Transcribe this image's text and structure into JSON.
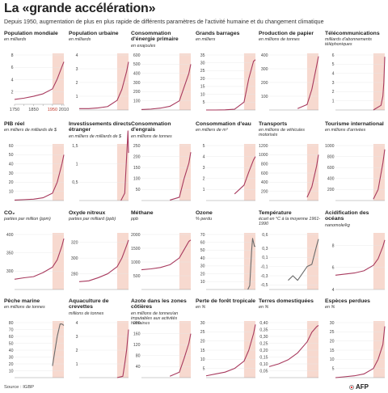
{
  "header": {
    "title": "La «grande accélération»",
    "subtitle": "Depuis 1950, augmentation de plus en plus rapide de différents paramètres de l'activité humaine et du changement climatique"
  },
  "footer": {
    "source": "Source : IGBP",
    "logo": "AFP"
  },
  "colors": {
    "line": "#a83a5e",
    "highlight": "#f7d9cf",
    "line_dark": "#6b6b6b",
    "axis": "#999999"
  },
  "chart_data": [
    {
      "type": "line",
      "title": "Population mondiale",
      "ylabel": "en milliards",
      "ylim": [
        0,
        8
      ],
      "y_ticks": [
        2,
        4,
        6,
        8
      ],
      "x_ticks": [
        1750,
        1800,
        1850,
        1900,
        1950,
        2000,
        2010
      ],
      "x_tick_labels": [
        "1750",
        "",
        "1850",
        "",
        "1950",
        "",
        "2010"
      ],
      "highlight": [
        1950,
        2010
      ],
      "x": [
        1750,
        1800,
        1850,
        1900,
        1950,
        1975,
        2000,
        2010
      ],
      "values": [
        0.8,
        1,
        1.3,
        1.7,
        2.5,
        4.1,
        6.1,
        6.9
      ]
    },
    {
      "type": "line",
      "title": "Population urbaine",
      "ylabel": "en milliards",
      "ylim": [
        0,
        4
      ],
      "y_ticks": [
        1,
        2,
        3,
        4
      ],
      "highlight": [
        1950,
        2010
      ],
      "x": [
        1750,
        1800,
        1850,
        1900,
        1950,
        1975,
        2000,
        2010
      ],
      "values": [
        0.1,
        0.1,
        0.15,
        0.25,
        0.7,
        1.5,
        2.8,
        3.5
      ]
    },
    {
      "type": "line",
      "title": "Consommation d'énergie primaire",
      "ylabel": "en exajoules",
      "ylim": [
        0,
        600
      ],
      "y_ticks": [
        100,
        200,
        300,
        400,
        500,
        600
      ],
      "highlight": [
        1950,
        2010
      ],
      "x": [
        1750,
        1800,
        1850,
        1900,
        1950,
        1975,
        2000,
        2010
      ],
      "values": [
        5,
        10,
        20,
        40,
        100,
        250,
        400,
        500
      ]
    },
    {
      "type": "line",
      "title": "Grands barrages",
      "ylabel": "en milliers",
      "ylim": [
        0,
        35
      ],
      "y_ticks": [
        5,
        10,
        15,
        20,
        25,
        30,
        35
      ],
      "highlight": [
        1950,
        2010
      ],
      "x": [
        1750,
        1800,
        1850,
        1900,
        1950,
        1975,
        2000,
        2010
      ],
      "values": [
        0,
        0,
        0.1,
        0.5,
        5,
        20,
        31,
        32
      ]
    },
    {
      "type": "line",
      "title": "Production de papier",
      "ylabel": "en millions de tonnes",
      "ylim": [
        0,
        400
      ],
      "y_ticks": [
        100,
        200,
        300,
        400
      ],
      "highlight": [
        1950,
        2010
      ],
      "x": [
        1900,
        1950,
        1975,
        2000,
        2010
      ],
      "values": [
        10,
        40,
        150,
        320,
        390
      ]
    },
    {
      "type": "line",
      "title": "Télécommunications",
      "ylabel": "milliards d'abonnements téléphoniques",
      "ylim": [
        0,
        6
      ],
      "y_ticks": [
        1,
        2,
        3,
        4,
        5,
        6
      ],
      "highlight": [
        1950,
        2010
      ],
      "x": [
        1950,
        1990,
        2000,
        2005,
        2010
      ],
      "values": [
        0,
        0.5,
        1.5,
        3,
        5.8
      ]
    },
    {
      "type": "line",
      "title": "PIB réel",
      "ylabel": "en milliers de milliards de $",
      "ylim": [
        0,
        60
      ],
      "y_ticks": [
        10,
        20,
        30,
        40,
        50,
        60
      ],
      "highlight": [
        1950,
        2010
      ],
      "x": [
        1750,
        1800,
        1850,
        1900,
        1950,
        1975,
        2000,
        2010
      ],
      "values": [
        0.5,
        1,
        1.5,
        3,
        8,
        20,
        40,
        50
      ]
    },
    {
      "type": "line",
      "title": "Investissements directs étranger",
      "ylabel": "en milliers de milliards de $",
      "ylim": [
        0,
        1.5
      ],
      "y_ticks": [
        0.5,
        1,
        1.5
      ],
      "y_tick_labels": [
        "0,5",
        "1",
        "1,5"
      ],
      "highlight": [
        1950,
        2010
      ],
      "x": [
        1970,
        1990,
        2000,
        2007,
        2010
      ],
      "values": [
        0,
        0.2,
        1.2,
        1.9,
        1.3
      ]
    },
    {
      "type": "line",
      "title": "Consommation d'engrais",
      "ylabel": "en millions de tonnes",
      "ylim": [
        0,
        250
      ],
      "y_ticks": [
        50,
        100,
        150,
        200,
        250
      ],
      "highlight": [
        1950,
        2010
      ],
      "x": [
        1900,
        1950,
        1975,
        2000,
        2010
      ],
      "values": [
        2,
        15,
        100,
        170,
        220
      ]
    },
    {
      "type": "line",
      "title": "Consommation d'eau",
      "ylabel": "en milliers de m³",
      "ylim": [
        0,
        5
      ],
      "y_ticks": [
        1,
        2,
        3,
        4,
        5
      ],
      "highlight": [
        1950,
        2010
      ],
      "x": [
        1900,
        1950,
        1975,
        2000,
        2010
      ],
      "values": [
        0.6,
        1.4,
        2.6,
        3.7,
        4
      ]
    },
    {
      "type": "line",
      "title": "Transports",
      "ylabel": "en millions de véhicules motorisés",
      "ylim": [
        0,
        1200
      ],
      "y_ticks": [
        200,
        400,
        600,
        800,
        1000,
        1200
      ],
      "highlight": [
        1950,
        2010
      ],
      "x": [
        1950,
        1975,
        2000,
        2010
      ],
      "values": [
        70,
        300,
        750,
        1000
      ]
    },
    {
      "type": "line",
      "title": "Tourisme international",
      "ylabel": "en millions d'arrivées",
      "ylim": [
        0,
        1000
      ],
      "y_ticks": [
        200,
        400,
        600,
        800,
        1000
      ],
      "highlight": [
        1950,
        2010
      ],
      "x": [
        1950,
        1975,
        2000,
        2010
      ],
      "values": [
        25,
        200,
        680,
        930
      ]
    },
    {
      "type": "line",
      "title": "CO₂",
      "ylabel": "parties par million (ppm)",
      "ylim": [
        250,
        400
      ],
      "y_ticks": [
        300,
        350,
        400
      ],
      "highlight": [
        1950,
        2010
      ],
      "x": [
        1750,
        1800,
        1850,
        1900,
        1950,
        1975,
        2000,
        2010
      ],
      "values": [
        278,
        282,
        285,
        296,
        311,
        331,
        369,
        389
      ]
    },
    {
      "type": "line",
      "title": "Oxyde nitreux",
      "ylabel": "parties par milliard (ppb)",
      "ylim": [
        260,
        330
      ],
      "y_ticks": [
        280,
        300,
        320
      ],
      "highlight": [
        1950,
        2010
      ],
      "x": [
        1750,
        1800,
        1850,
        1900,
        1950,
        1975,
        2000,
        2010
      ],
      "values": [
        270,
        271,
        275,
        280,
        289,
        300,
        316,
        323
      ]
    },
    {
      "type": "line",
      "title": "Méthane",
      "ylabel": "ppb",
      "ylim": [
        0,
        2000
      ],
      "y_ticks": [
        500,
        1000,
        1500,
        2000
      ],
      "highlight": [
        1950,
        2010
      ],
      "x": [
        1750,
        1800,
        1850,
        1900,
        1950,
        1975,
        2000,
        2010
      ],
      "values": [
        720,
        750,
        800,
        900,
        1150,
        1450,
        1750,
        1800
      ]
    },
    {
      "type": "line",
      "title": "Ozone",
      "ylabel": "% perdu",
      "ylim": [
        0,
        70
      ],
      "y_ticks": [
        10,
        20,
        30,
        40,
        50,
        60,
        70
      ],
      "highlight": [
        1950,
        2010
      ],
      "x": [
        1970,
        1980,
        1990,
        1995,
        2000,
        2005,
        2010
      ],
      "values": [
        0,
        5,
        50,
        65,
        60,
        55,
        55
      ]
    },
    {
      "type": "line",
      "title": "Température",
      "ylabel": "écart en °C à la moyenne 1961-1990",
      "ylim": [
        -0.6,
        0.6
      ],
      "y_ticks": [
        -0.5,
        -0.3,
        -0.1,
        0.1,
        0.3,
        0.6
      ],
      "y_tick_labels": [
        "-0,5",
        "-0,3",
        "-0,1",
        "0,1",
        "0,3",
        "0,6"
      ],
      "highlight": [
        1950,
        2010
      ],
      "x": [
        1850,
        1875,
        1900,
        1925,
        1950,
        1975,
        2000,
        2010
      ],
      "values": [
        -0.4,
        -0.3,
        -0.4,
        -0.25,
        -0.1,
        -0.05,
        0.35,
        0.5
      ]
    },
    {
      "type": "line",
      "title": "Acidification des océans",
      "ylabel": "nanomole/kg",
      "ylim": [
        4,
        9
      ],
      "y_ticks": [
        4,
        6,
        8
      ],
      "highlight": [
        1950,
        2010
      ],
      "x": [
        1750,
        1800,
        1850,
        1900,
        1950,
        1975,
        2000,
        2010
      ],
      "values": [
        5.3,
        5.4,
        5.5,
        5.7,
        6.2,
        6.8,
        7.9,
        8.5
      ]
    },
    {
      "type": "line",
      "title": "Pêche marine",
      "ylabel": "en millions de tonnes",
      "ylim": [
        0,
        80
      ],
      "y_ticks": [
        10,
        20,
        30,
        40,
        50,
        60,
        70,
        80
      ],
      "highlight": [
        1950,
        2010
      ],
      "x": [
        1950,
        1975,
        1990,
        2000,
        2010
      ],
      "values": [
        17,
        60,
        78,
        78,
        76
      ]
    },
    {
      "type": "line",
      "title": "Aquaculture de crevettes",
      "ylabel": "millions de tonnes",
      "ylim": [
        0,
        4
      ],
      "y_ticks": [
        1,
        2,
        3,
        4
      ],
      "highlight": [
        1950,
        2010
      ],
      "x": [
        1950,
        1980,
        1990,
        2000,
        2010
      ],
      "values": [
        0,
        0.1,
        1,
        2,
        3.5
      ]
    },
    {
      "type": "line",
      "title": "Azote dans les zones côtières",
      "ylabel": "en millions de tonnes/an imputables aux activités humaines",
      "ylim": [
        0,
        200
      ],
      "y_ticks": [
        40,
        80,
        120,
        160,
        200
      ],
      "highlight": [
        1950,
        2010
      ],
      "x": [
        1900,
        1950,
        1975,
        2000,
        2010
      ],
      "values": [
        5,
        20,
        70,
        125,
        160
      ]
    },
    {
      "type": "line",
      "title": "Perte de forêt tropicale",
      "ylabel": "en %",
      "ylim": [
        0,
        30
      ],
      "y_ticks": [
        5,
        10,
        15,
        20,
        25,
        30
      ],
      "highlight": [
        1950,
        2010
      ],
      "x": [
        1750,
        1800,
        1850,
        1900,
        1950,
        1975,
        2000,
        2010
      ],
      "values": [
        1,
        2,
        3,
        5,
        9,
        15,
        24,
        29
      ]
    },
    {
      "type": "line",
      "title": "Terres domestiquées",
      "ylabel": "en %",
      "ylim": [
        0,
        0.4
      ],
      "y_ticks": [
        0.05,
        0.1,
        0.15,
        0.2,
        0.25,
        0.3,
        0.35,
        0.4
      ],
      "y_tick_labels": [
        "0,05",
        "0,10",
        "0,15",
        "0,20",
        "0,25",
        "0,30",
        "0,35",
        "0,40"
      ],
      "highlight": [
        1950,
        2010
      ],
      "x": [
        1750,
        1800,
        1850,
        1900,
        1950,
        1975,
        2000,
        2010
      ],
      "values": [
        0.08,
        0.1,
        0.13,
        0.18,
        0.26,
        0.33,
        0.37,
        0.38
      ]
    },
    {
      "type": "line",
      "title": "Espèces perdues",
      "ylabel": "en %",
      "ylim": [
        0,
        30
      ],
      "y_ticks": [
        5,
        10,
        15,
        20,
        25,
        30
      ],
      "highlight": [
        1950,
        2010
      ],
      "x": [
        1750,
        1800,
        1850,
        1900,
        1950,
        1975,
        2000,
        2010
      ],
      "values": [
        0,
        0.5,
        1,
        2,
        5,
        10,
        18,
        28
      ]
    }
  ]
}
